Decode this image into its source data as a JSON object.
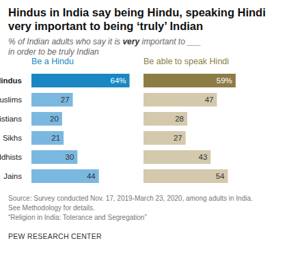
{
  "title": [
    "Hindus in India say being Hindu, speaking Hindi",
    "very important to being ‘truly’ Indian"
  ],
  "subtitle": [
    "% of Indian adults who say it is very important to ___",
    "in order to be truly Indian"
  ],
  "subtitle_emphasis": "very",
  "chart_data": [
    {
      "type": "bar",
      "orientation": "horizontal",
      "title": "Be a Hindu",
      "categories": [
        "Hindus",
        "Muslims",
        "Christians",
        "Sikhs",
        "Buddhists",
        "Jains"
      ],
      "values": [
        64,
        27,
        20,
        21,
        30,
        44
      ],
      "value_labels": [
        "64%",
        "27",
        "20",
        "21",
        "30",
        "44"
      ],
      "colors": [
        "#1a87c2",
        "#7bb8e0",
        "#7bb8e0",
        "#7bb8e0",
        "#7bb8e0",
        "#7bb8e0"
      ],
      "xlim": [
        0,
        70
      ],
      "data_labels": true,
      "tick_labels": "y"
    },
    {
      "type": "bar",
      "orientation": "horizontal",
      "title": "Be able to speak Hindi",
      "categories": [
        "Hindus",
        "Muslims",
        "Christians",
        "Sikhs",
        "Buddhists",
        "Jains"
      ],
      "values": [
        59,
        47,
        28,
        27,
        43,
        54
      ],
      "value_labels": [
        "59%",
        "47",
        "28",
        "27",
        "43",
        "54"
      ],
      "colors": [
        "#8c7c46",
        "#d4c9ad",
        "#d4c9ad",
        "#d4c9ad",
        "#d4c9ad",
        "#d4c9ad"
      ],
      "xlim": [
        0,
        70
      ],
      "data_labels": true,
      "tick_labels": false
    }
  ],
  "notes": [
    "Source: Survey conducted Nov. 17, 2019-March 23, 2020, among adults in India.",
    "See Methodology for details.",
    "“Religion in India: Tolerance and Segregation”"
  ],
  "credit": "PEW RESEARCH CENTER"
}
